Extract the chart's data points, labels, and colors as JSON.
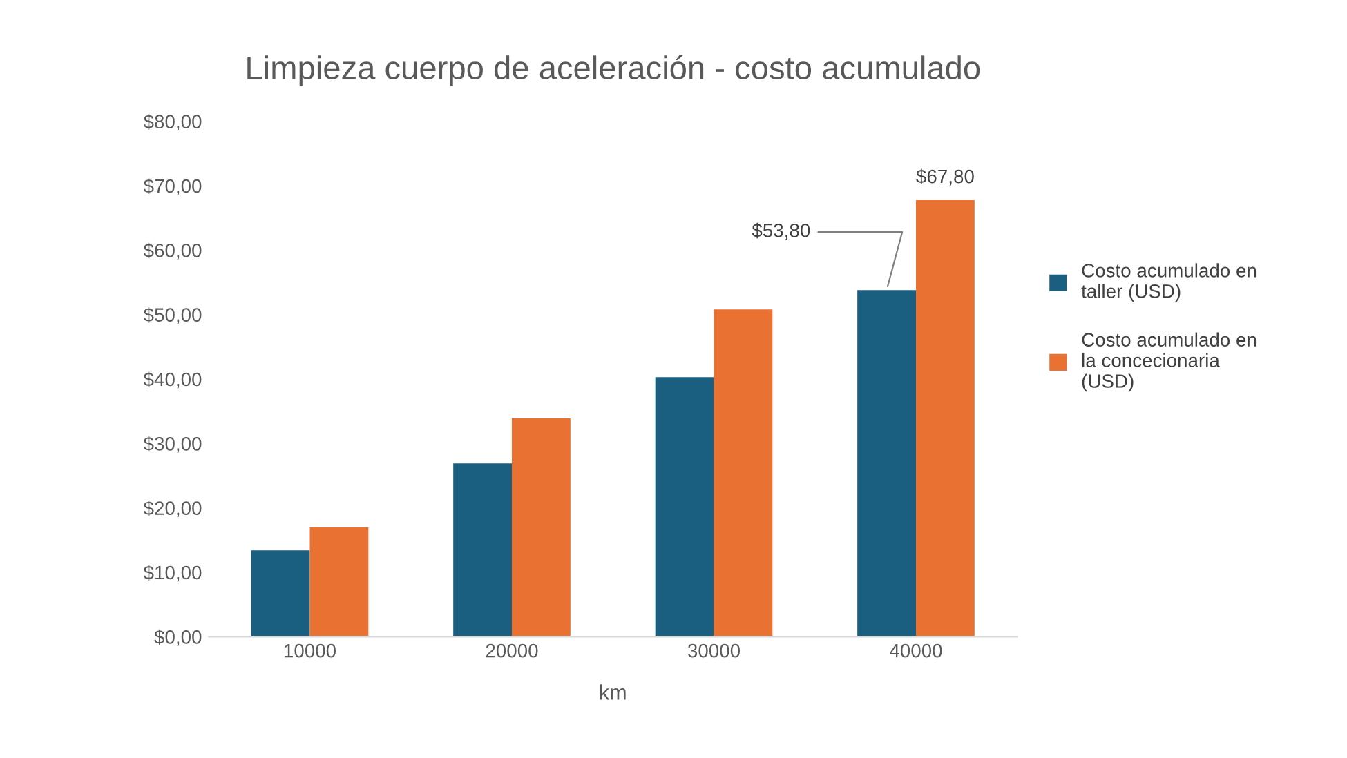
{
  "chart_data": {
    "type": "bar",
    "title": "Limpieza cuerpo de aceleración - costo acumulado",
    "xlabel": "km",
    "categories": [
      "10000",
      "20000",
      "30000",
      "40000"
    ],
    "series": [
      {
        "name": "Costo acumulado en taller (USD)",
        "color": "#1a5e80",
        "values": [
          13.4,
          26.9,
          40.3,
          53.8
        ],
        "value_labels": [
          null,
          null,
          null,
          "$53,80"
        ]
      },
      {
        "name": "Costo acumulado en la concecionaria (USD)",
        "color": "#e97132",
        "values": [
          17.0,
          33.9,
          50.8,
          67.8
        ],
        "value_labels": [
          null,
          null,
          null,
          "$67,80"
        ]
      }
    ],
    "ylim": [
      0,
      80
    ],
    "yticks": [
      {
        "value": 0,
        "label": "$0,00"
      },
      {
        "value": 10,
        "label": "$10,00"
      },
      {
        "value": 20,
        "label": "$20,00"
      },
      {
        "value": 30,
        "label": "$30,00"
      },
      {
        "value": 40,
        "label": "$40,00"
      },
      {
        "value": 50,
        "label": "$50,00"
      },
      {
        "value": 60,
        "label": "$60,00"
      },
      {
        "value": 70,
        "label": "$70,00"
      },
      {
        "value": 80,
        "label": "$80,00"
      }
    ],
    "legend": "right",
    "grid": false
  }
}
